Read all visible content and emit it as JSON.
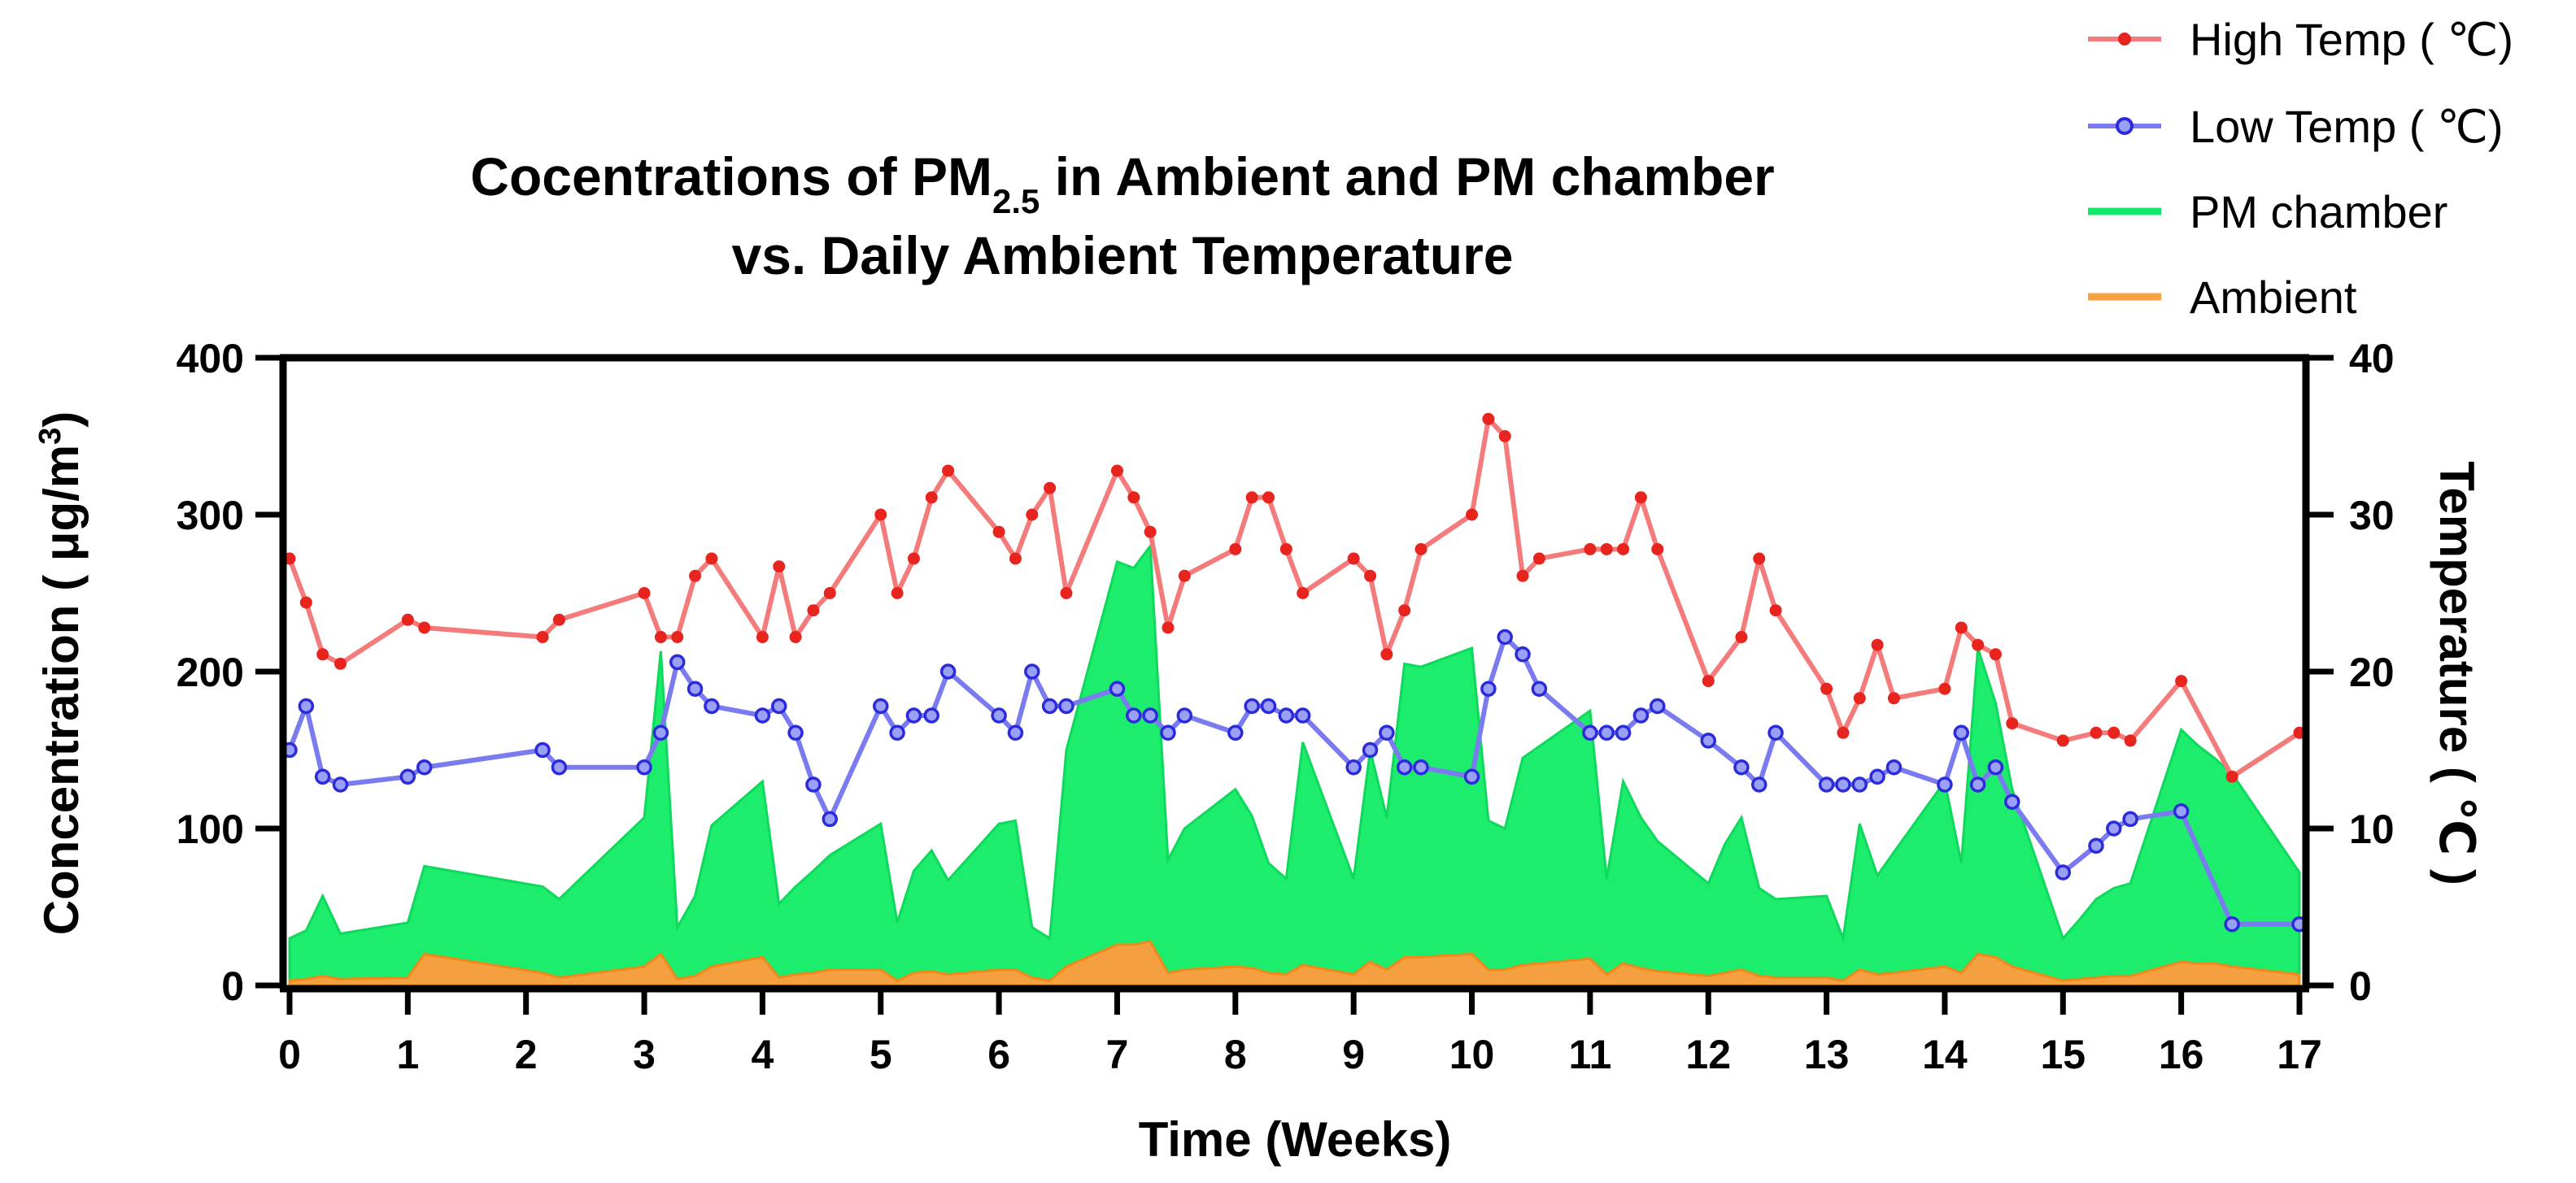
{
  "chart_data": {
    "type": "area+line (dual axis)",
    "title_line1_pre": "Cocentrations of PM",
    "title_line1_sub": "2.5",
    "title_line1_post": " in Ambient and PM chamber",
    "title_line2": "vs. Daily Ambient Temperature",
    "xlabel": "Time (Weeks)",
    "ylabel_left_pre": "Concentration ( μg/m",
    "ylabel_left_sup": "3",
    "ylabel_left_post": ")",
    "ylabel_right": "Temperature ( ℃ )",
    "xlim": [
      0,
      17
    ],
    "ylim_left": [
      0,
      400
    ],
    "ylim_right": [
      0,
      40
    ],
    "x_ticks": [
      "0",
      "1",
      "2",
      "3",
      "4",
      "5",
      "6",
      "7",
      "8",
      "9",
      "10",
      "11",
      "12",
      "13",
      "14",
      "15",
      "16",
      "17"
    ],
    "y_left_ticks": [
      "0",
      "100",
      "200",
      "300",
      "400"
    ],
    "y_right_ticks": [
      "0",
      "10",
      "20",
      "30",
      "40"
    ],
    "legend": [
      {
        "label": "High Temp ( ℃)",
        "color": "#f47b7b",
        "marker": "#e8241f"
      },
      {
        "label": "Low Temp ( ℃)",
        "color": "#7b7bf0",
        "marker": "#2424e0"
      },
      {
        "label": "PM chamber",
        "color": "#12e868"
      },
      {
        "label": "Ambient",
        "color": "#f7a040"
      }
    ],
    "colors": {
      "pm_fill": "#1ded6c",
      "pm_edge": "#0fd95d",
      "ambient_fill": "#f5a040",
      "ambient_edge": "#ef8a1a",
      "high_line": "#f47b7b",
      "high_marker": "#e8241f",
      "low_line": "#7b7bf0",
      "low_marker": "#2b2bdc",
      "low_marker_fill": "#9aa0f5"
    },
    "series": [
      {
        "name": "PM chamber",
        "axis": "left",
        "x": [
          0,
          0.14,
          0.28,
          0.43,
          1,
          1.14,
          2.14,
          2.28,
          3,
          3.14,
          3.28,
          3.43,
          3.57,
          4,
          4.14,
          4.28,
          4.43,
          4.57,
          5,
          5.14,
          5.28,
          5.43,
          5.57,
          6,
          6.14,
          6.28,
          6.43,
          6.57,
          7,
          7.14,
          7.28,
          7.43,
          7.57,
          8,
          8.14,
          8.28,
          8.43,
          8.57,
          9,
          9.14,
          9.28,
          9.43,
          9.57,
          10,
          10.14,
          10.28,
          10.43,
          11,
          11.14,
          11.28,
          11.43,
          11.57,
          12,
          12.14,
          12.28,
          12.43,
          12.57,
          13,
          13.14,
          13.28,
          13.43,
          13.57,
          14,
          14.14,
          14.28,
          14.43,
          14.57,
          15,
          15.14,
          15.28,
          15.43,
          15.57,
          16,
          16.14,
          16.28,
          16.43,
          17
        ],
        "values": [
          30,
          35,
          57,
          33,
          40,
          76,
          63,
          55,
          107,
          213,
          37,
          57,
          102,
          130,
          52,
          63,
          73,
          83,
          103,
          40,
          73,
          86,
          67,
          103,
          105,
          37,
          30,
          150,
          270,
          266,
          280,
          80,
          100,
          125,
          108,
          78,
          68,
          155,
          68,
          150,
          107,
          205,
          203,
          215,
          105,
          100,
          145,
          175,
          68,
          130,
          107,
          92,
          65,
          90,
          107,
          62,
          55,
          57,
          30,
          103,
          70,
          85,
          130,
          78,
          215,
          180,
          125,
          30,
          42,
          55,
          62,
          65,
          163,
          153,
          145,
          135,
          72
        ]
      },
      {
        "name": "Ambient",
        "axis": "left",
        "x": [
          0,
          0.14,
          0.28,
          0.43,
          1,
          1.14,
          2.14,
          2.28,
          3,
          3.14,
          3.28,
          3.43,
          3.57,
          4,
          4.14,
          4.28,
          4.43,
          4.57,
          5,
          5.14,
          5.28,
          5.43,
          5.57,
          6,
          6.14,
          6.28,
          6.43,
          6.57,
          7,
          7.14,
          7.28,
          7.43,
          7.57,
          8,
          8.14,
          8.28,
          8.43,
          8.57,
          9,
          9.14,
          9.28,
          9.43,
          9.57,
          10,
          10.14,
          10.28,
          10.43,
          11,
          11.14,
          11.28,
          11.43,
          11.57,
          12,
          12.14,
          12.28,
          12.43,
          12.57,
          13,
          13.14,
          13.28,
          13.43,
          13.57,
          14,
          14.14,
          14.28,
          14.43,
          14.57,
          15,
          15.14,
          15.28,
          15.43,
          15.57,
          16,
          16.14,
          16.28,
          16.43,
          17
        ],
        "values": [
          3,
          4,
          6,
          4,
          5,
          20,
          8,
          5,
          12,
          20,
          4,
          6,
          12,
          18,
          5,
          7,
          8,
          10,
          10,
          3,
          8,
          9,
          7,
          10,
          10,
          5,
          3,
          12,
          26,
          26,
          28,
          8,
          10,
          12,
          11,
          8,
          7,
          13,
          7,
          15,
          10,
          18,
          18,
          20,
          10,
          10,
          13,
          17,
          7,
          14,
          11,
          9,
          6,
          8,
          10,
          6,
          5,
          5,
          3,
          10,
          7,
          8,
          12,
          8,
          20,
          18,
          12,
          3,
          4,
          5,
          6,
          6,
          15,
          14,
          14,
          12,
          7
        ]
      },
      {
        "name": "High Temp ( ℃)",
        "axis": "right",
        "x": [
          0,
          0.14,
          0.28,
          0.43,
          1,
          1.14,
          2.14,
          2.28,
          3,
          3.14,
          3.28,
          3.43,
          3.57,
          4,
          4.14,
          4.28,
          4.43,
          4.57,
          5,
          5.14,
          5.28,
          5.43,
          5.57,
          6,
          6.14,
          6.28,
          6.43,
          6.57,
          7,
          7.14,
          7.28,
          7.43,
          7.57,
          8,
          8.14,
          8.28,
          8.43,
          8.57,
          9,
          9.14,
          9.28,
          9.43,
          9.57,
          10,
          10.14,
          10.28,
          10.43,
          10.57,
          11,
          11.14,
          11.28,
          11.43,
          11.57,
          12,
          12.28,
          12.43,
          12.57,
          13,
          13.14,
          13.28,
          13.43,
          13.57,
          14,
          14.14,
          14.28,
          14.43,
          14.57,
          15,
          15.28,
          15.43,
          15.57,
          16,
          16.43,
          17
        ],
        "values": [
          27.2,
          24.4,
          21.1,
          20.5,
          23.3,
          22.8,
          22.2,
          23.3,
          25,
          22.2,
          22.2,
          26.1,
          27.2,
          22.2,
          26.7,
          22.2,
          23.9,
          25,
          30,
          25,
          27.2,
          31.1,
          32.8,
          28.9,
          27.2,
          30,
          31.7,
          25,
          32.8,
          31.1,
          28.9,
          22.8,
          26.1,
          27.8,
          31.1,
          31.1,
          27.8,
          25,
          27.2,
          26.1,
          21.1,
          23.9,
          27.8,
          30,
          36.1,
          35,
          26.1,
          27.2,
          27.8,
          27.8,
          27.8,
          31.1,
          27.8,
          19.4,
          22.2,
          27.2,
          23.9,
          18.9,
          16.1,
          18.3,
          21.7,
          18.3,
          18.9,
          22.8,
          21.7,
          21.1,
          16.7,
          15.6,
          16.1,
          16.1,
          15.6,
          19.4,
          13.3,
          16.1
        ]
      },
      {
        "name": "Low Temp ( ℃)",
        "axis": "right",
        "x": [
          0,
          0.14,
          0.28,
          0.43,
          1,
          1.14,
          2.14,
          2.28,
          3,
          3.14,
          3.28,
          3.43,
          3.57,
          4,
          4.14,
          4.28,
          4.43,
          4.57,
          5,
          5.14,
          5.28,
          5.43,
          5.57,
          6,
          6.14,
          6.28,
          6.43,
          6.57,
          7,
          7.14,
          7.28,
          7.43,
          7.57,
          8,
          8.14,
          8.28,
          8.43,
          8.57,
          9,
          9.14,
          9.28,
          9.43,
          9.57,
          10,
          10.14,
          10.28,
          10.43,
          10.57,
          11,
          11.14,
          11.28,
          11.43,
          11.57,
          12,
          12.28,
          12.43,
          12.57,
          13,
          13.14,
          13.28,
          13.43,
          13.57,
          14,
          14.14,
          14.28,
          14.43,
          14.57,
          15,
          15.28,
          15.43,
          15.57,
          16,
          16.43,
          17
        ],
        "values": [
          15,
          17.8,
          13.3,
          12.8,
          13.3,
          13.9,
          15,
          13.9,
          13.9,
          16.1,
          20.6,
          18.9,
          17.8,
          17.2,
          17.8,
          16.1,
          12.8,
          10.6,
          17.8,
          16.1,
          17.2,
          17.2,
          20,
          17.2,
          16.1,
          20,
          17.8,
          17.8,
          18.9,
          17.2,
          17.2,
          16.1,
          17.2,
          16.1,
          17.8,
          17.8,
          17.2,
          17.2,
          13.9,
          15,
          16.1,
          13.9,
          13.9,
          13.3,
          18.9,
          22.2,
          21.1,
          18.9,
          16.1,
          16.1,
          16.1,
          17.2,
          17.8,
          15.6,
          13.9,
          12.8,
          16.1,
          12.8,
          12.8,
          12.8,
          13.3,
          13.9,
          12.8,
          16.1,
          12.8,
          13.9,
          11.7,
          7.2,
          8.9,
          10,
          10.6,
          11.1,
          3.9,
          3.9
        ]
      }
    ]
  }
}
